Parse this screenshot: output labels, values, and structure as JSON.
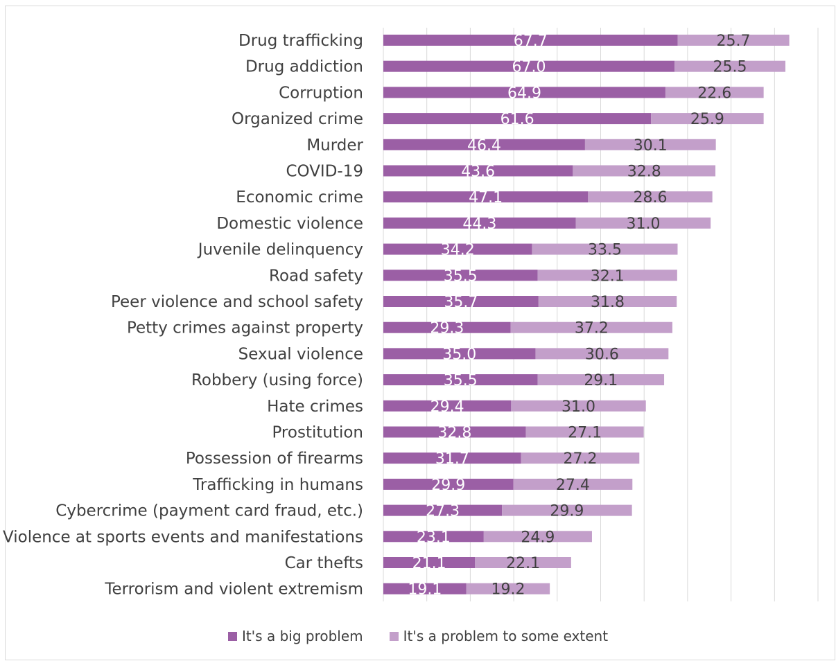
{
  "chart_data": {
    "type": "bar",
    "orientation": "horizontal",
    "stacked": true,
    "categories": [
      "Drug trafficking",
      "Drug addiction",
      "Corruption",
      "Organized crime",
      "Murder",
      "COVID-19",
      "Economic crime",
      "Domestic violence",
      "Juvenile delinquency",
      "Road safety",
      "Peer violence and school safety",
      "Petty crimes against property",
      "Sexual violence",
      "Robbery (using force)",
      "Hate crimes",
      "Prostitution",
      "Possession of firearms",
      "Trafficking in humans",
      "Cybercrime (payment card fraud, etc.)",
      "Violence at sports events and manifestations",
      "Car thefts",
      "Terrorism and violent extremism"
    ],
    "series": [
      {
        "name": "It's a big problem",
        "color": "#9b5fa5",
        "values": [
          67.7,
          67.0,
          64.9,
          61.6,
          46.4,
          43.6,
          47.1,
          44.3,
          34.2,
          35.5,
          35.7,
          29.3,
          35.0,
          35.5,
          29.4,
          32.8,
          31.7,
          29.9,
          27.3,
          23.1,
          21.1,
          19.1
        ]
      },
      {
        "name": "It's a problem to some extent",
        "color": "#c39fca",
        "values": [
          25.7,
          25.5,
          22.6,
          25.9,
          30.1,
          32.8,
          28.6,
          31.0,
          33.5,
          32.1,
          31.8,
          37.2,
          30.6,
          29.1,
          31.0,
          27.1,
          27.2,
          27.4,
          29.9,
          24.9,
          22.1,
          19.2
        ]
      }
    ],
    "xlim": [
      0,
      100
    ],
    "grid": true,
    "legend_position": "bottom",
    "title": "",
    "xlabel": "",
    "ylabel": ""
  }
}
